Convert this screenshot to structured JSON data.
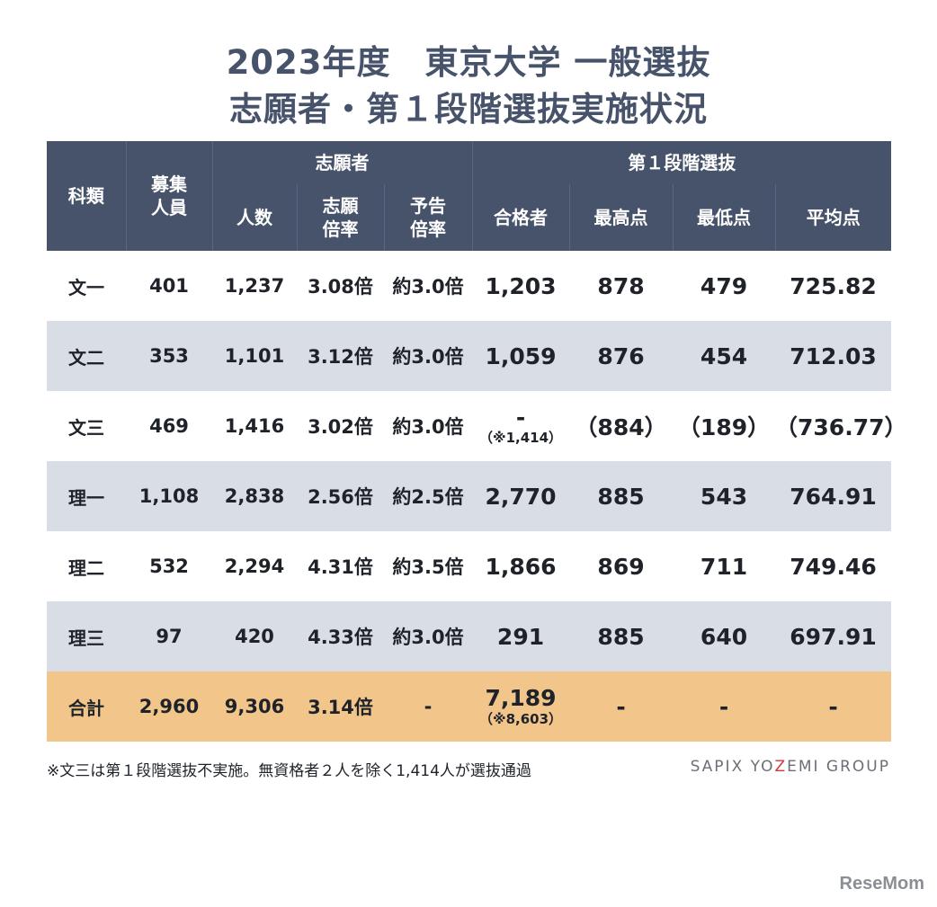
{
  "title": {
    "line1": "2023年度　東京大学 一般選抜",
    "line2": "志願者・第１段階選抜実施状況"
  },
  "headers": {
    "subject": "科類",
    "quota_line1": "募集",
    "quota_line2": "人員",
    "applicants_group": "志願者",
    "stage1_group": "第１段階選抜",
    "applicants_count": "人数",
    "ratio_line1": "志願",
    "ratio_line2": "倍率",
    "notice_line1": "予告",
    "notice_line2": "倍率",
    "passed": "合格者",
    "highest": "最高点",
    "lowest": "最低点",
    "average": "平均点"
  },
  "rows": [
    {
      "subject": "文一",
      "quota": "401",
      "applicants": "1,237",
      "ratio": "3.08倍",
      "notice": "約3.0倍",
      "passed": "1,203",
      "passed_note": "",
      "highest": "878",
      "lowest": "479",
      "average": "725.82"
    },
    {
      "subject": "文二",
      "quota": "353",
      "applicants": "1,101",
      "ratio": "3.12倍",
      "notice": "約3.0倍",
      "passed": "1,059",
      "passed_note": "",
      "highest": "876",
      "lowest": "454",
      "average": "712.03"
    },
    {
      "subject": "文三",
      "quota": "469",
      "applicants": "1,416",
      "ratio": "3.02倍",
      "notice": "約3.0倍",
      "passed": "-",
      "passed_note": "（※1,414）",
      "highest": "（884）",
      "lowest": "（189）",
      "average": "（736.77）"
    },
    {
      "subject": "理一",
      "quota": "1,108",
      "applicants": "2,838",
      "ratio": "2.56倍",
      "notice": "約2.5倍",
      "passed": "2,770",
      "passed_note": "",
      "highest": "885",
      "lowest": "543",
      "average": "764.91"
    },
    {
      "subject": "理二",
      "quota": "532",
      "applicants": "2,294",
      "ratio": "4.31倍",
      "notice": "約3.5倍",
      "passed": "1,866",
      "passed_note": "",
      "highest": "869",
      "lowest": "711",
      "average": "749.46"
    },
    {
      "subject": "理三",
      "quota": "97",
      "applicants": "420",
      "ratio": "4.33倍",
      "notice": "約3.0倍",
      "passed": "291",
      "passed_note": "",
      "highest": "885",
      "lowest": "640",
      "average": "697.91"
    },
    {
      "subject": "合計",
      "quota": "2,960",
      "applicants": "9,306",
      "ratio": "3.14倍",
      "notice": "-",
      "passed": "7,189",
      "passed_note": "（※8,603）",
      "highest": "-",
      "lowest": "-",
      "average": "-"
    }
  ],
  "footnote": "※文三は第１段階選抜不実施。無資格者２人を除く1,414人が選抜通過",
  "brand": {
    "part1": "SAPIX YO",
    "z": "Z",
    "part2": "EMI GROUP"
  },
  "logo": "ReseMom",
  "colors": {
    "header_bg": "#47536a",
    "shade_row": "#d8dde6",
    "total_row": "#f2c58a",
    "title": "#47536a"
  }
}
